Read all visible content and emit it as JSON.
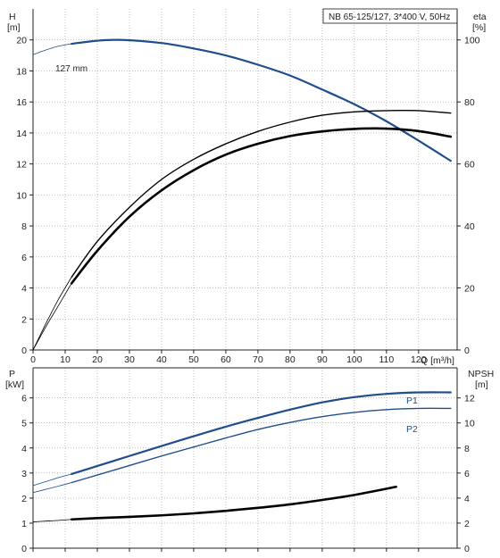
{
  "chart_data": [
    {
      "id": "head-efficiency",
      "type": "line",
      "title": "NB 65-125/127, 3*400 V, 50Hz",
      "x_axis": {
        "label": "Q [m³/h]",
        "range": [
          0,
          132
        ],
        "ticks": [
          0,
          10,
          20,
          30,
          40,
          50,
          60,
          70,
          80,
          90,
          100,
          110,
          120
        ]
      },
      "y_left": {
        "label_top": "H",
        "label_unit": "[m]",
        "range": [
          0,
          22
        ],
        "ticks": [
          0,
          2,
          4,
          6,
          8,
          10,
          12,
          14,
          16,
          18,
          20
        ]
      },
      "y_right": {
        "label_top": "eta",
        "label_unit": "[%]",
        "range": [
          0,
          110
        ],
        "ticks": [
          0,
          20,
          40,
          60,
          80,
          100
        ]
      },
      "annotation": "127 mm",
      "series": [
        {
          "axis": "left",
          "color": "#1f4e8c",
          "style": "main",
          "x": [
            12,
            20,
            28,
            40,
            50,
            60,
            70,
            80,
            90,
            100,
            110,
            120,
            130
          ],
          "y": [
            19.75,
            19.95,
            20.0,
            19.8,
            19.45,
            19.0,
            18.4,
            17.7,
            16.8,
            15.85,
            14.75,
            13.5,
            12.2
          ]
        },
        {
          "axis": "left",
          "color": "#1f4e8c",
          "style": "extension",
          "x": [
            0,
            4,
            8,
            12
          ],
          "y": [
            19.05,
            19.35,
            19.6,
            19.75
          ]
        },
        {
          "axis": "right",
          "color": "#000000",
          "style": "thin",
          "x": [
            12,
            20,
            30,
            40,
            50,
            60,
            70,
            80,
            90,
            100,
            110,
            120,
            130
          ],
          "y": [
            23.5,
            35,
            46,
            55,
            61.5,
            66.5,
            70.5,
            73.5,
            75.7,
            76.8,
            77.2,
            77.2,
            76.4
          ]
        },
        {
          "axis": "right",
          "color": "#000000",
          "style": "thin-extension",
          "x": [
            0,
            4,
            8,
            12
          ],
          "y": [
            0,
            8.5,
            16.5,
            23.5
          ]
        },
        {
          "axis": "right",
          "color": "#000000",
          "style": "thick",
          "x": [
            12,
            20,
            30,
            40,
            50,
            60,
            70,
            80,
            90,
            100,
            110,
            120,
            130
          ],
          "y": [
            21.5,
            32,
            43,
            51.5,
            58,
            63,
            66.5,
            69,
            70.5,
            71.3,
            71.4,
            70.6,
            68.8
          ]
        },
        {
          "axis": "right",
          "color": "#000000",
          "style": "thin-extension",
          "x": [
            0,
            4,
            8,
            12
          ],
          "y": [
            0,
            7.5,
            14.5,
            21.5
          ]
        }
      ]
    },
    {
      "id": "power-npsh",
      "type": "line",
      "x_axis": {
        "range": [
          0,
          132
        ],
        "ticks": [
          0,
          10,
          20,
          30,
          40,
          50,
          60,
          70,
          80,
          90,
          100,
          110,
          120
        ]
      },
      "y_left": {
        "label_top": "P",
        "label_unit": "[kW]",
        "range": [
          0,
          7.2
        ],
        "ticks": [
          0,
          1,
          2,
          3,
          4,
          5,
          6
        ]
      },
      "y_right": {
        "label_top": "NPSH",
        "label_unit": "[m]",
        "range": [
          0,
          14.4
        ],
        "ticks": [
          0,
          2,
          4,
          6,
          8,
          10,
          12
        ]
      },
      "series": [
        {
          "name": "P1",
          "axis": "left",
          "color": "#1f4e8c",
          "style": "main",
          "x": [
            12,
            20,
            30,
            40,
            50,
            60,
            70,
            80,
            90,
            100,
            110,
            120,
            130
          ],
          "y": [
            2.96,
            3.28,
            3.68,
            4.08,
            4.47,
            4.85,
            5.2,
            5.53,
            5.82,
            6.03,
            6.16,
            6.22,
            6.22
          ]
        },
        {
          "axis": "left",
          "color": "#1f4e8c",
          "style": "extension",
          "x": [
            0,
            4,
            8,
            12
          ],
          "y": [
            2.5,
            2.66,
            2.82,
            2.96
          ]
        },
        {
          "name": "P2",
          "axis": "left",
          "color": "#1f4e8c",
          "style": "thin",
          "x": [
            12,
            20,
            30,
            40,
            50,
            60,
            70,
            80,
            90,
            100,
            110,
            120,
            130
          ],
          "y": [
            2.62,
            2.92,
            3.3,
            3.68,
            4.04,
            4.4,
            4.74,
            5.02,
            5.25,
            5.42,
            5.53,
            5.58,
            5.58
          ]
        },
        {
          "axis": "left",
          "color": "#1f4e8c",
          "style": "extension",
          "x": [
            0,
            4,
            8,
            12
          ],
          "y": [
            2.22,
            2.35,
            2.48,
            2.62
          ]
        },
        {
          "axis": "right",
          "color": "#000000",
          "style": "thick",
          "x": [
            12,
            20,
            30,
            40,
            50,
            60,
            70,
            80,
            90,
            100,
            113
          ],
          "y": [
            2.3,
            2.4,
            2.5,
            2.62,
            2.78,
            2.98,
            3.22,
            3.5,
            3.85,
            4.25,
            4.9
          ]
        },
        {
          "axis": "right",
          "color": "#000000",
          "style": "thin-extension",
          "x": [
            0,
            4,
            8,
            12
          ],
          "y": [
            2.1,
            2.16,
            2.22,
            2.3
          ]
        }
      ]
    }
  ],
  "colors": {
    "blue": "#1f4e8c",
    "black": "#000000",
    "grid": "#9a9a9a"
  }
}
